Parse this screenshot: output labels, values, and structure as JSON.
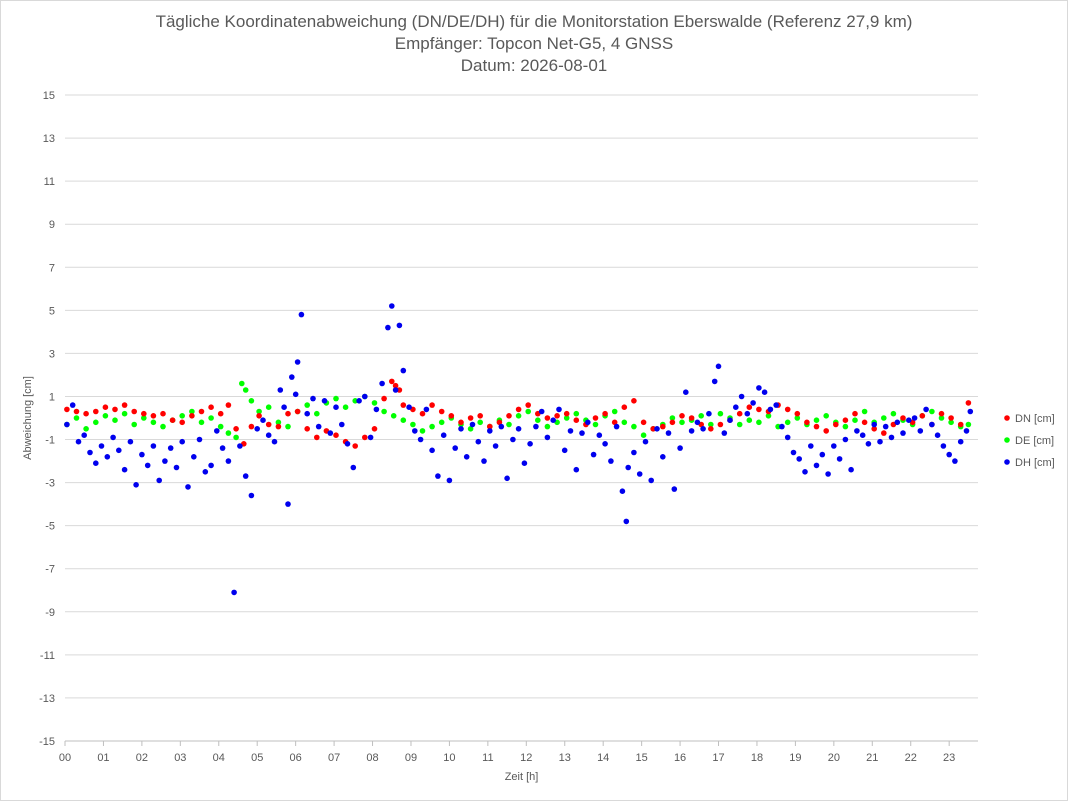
{
  "chart_data": {
    "type": "scatter",
    "title": "Tägliche Koordinatenabweichung (DN/DE/DH) für die Monitorstation Eberswalde (Referenz 27,9 km)",
    "subtitle_lines": [
      "Empfänger: Topcon Net-G5, 4 GNSS",
      "Datum: 2026-08-01"
    ],
    "xlabel": "Zeit [h]",
    "ylabel": "Abweichung [cm]",
    "xlim": [
      0,
      23.75
    ],
    "ylim": [
      -15,
      15
    ],
    "x_ticks": [
      "00",
      "01",
      "02",
      "03",
      "04",
      "05",
      "06",
      "07",
      "08",
      "09",
      "10",
      "11",
      "12",
      "13",
      "14",
      "15",
      "16",
      "17",
      "18",
      "19",
      "20",
      "21",
      "22",
      "23"
    ],
    "y_ticks": [
      15,
      13,
      11,
      9,
      7,
      5,
      3,
      1,
      -1,
      -3,
      -5,
      -7,
      -9,
      -11,
      -13,
      -15
    ],
    "grid": "horizontal",
    "legend_position": "right",
    "series": [
      {
        "name": "DN [cm]",
        "color": "#ff0000",
        "x": [
          0.05,
          0.3,
          0.55,
          0.8,
          1.05,
          1.3,
          1.55,
          1.8,
          2.05,
          2.3,
          2.55,
          2.8,
          3.05,
          3.3,
          3.55,
          3.8,
          4.05,
          4.25,
          4.45,
          4.65,
          4.85,
          5.05,
          5.3,
          5.55,
          5.8,
          6.05,
          6.3,
          6.55,
          6.8,
          7.05,
          7.3,
          7.55,
          7.8,
          8.05,
          8.3,
          8.5,
          8.6,
          8.7,
          8.8,
          9.05,
          9.3,
          9.55,
          9.8,
          10.05,
          10.3,
          10.55,
          10.8,
          11.05,
          11.3,
          11.55,
          11.8,
          12.05,
          12.3,
          12.55,
          12.8,
          13.05,
          13.3,
          13.55,
          13.8,
          14.05,
          14.3,
          14.55,
          14.8,
          15.05,
          15.3,
          15.55,
          15.8,
          16.05,
          16.3,
          16.55,
          16.8,
          17.05,
          17.3,
          17.55,
          17.8,
          18.05,
          18.3,
          18.55,
          18.8,
          19.05,
          19.3,
          19.55,
          19.8,
          20.05,
          20.3,
          20.55,
          20.8,
          21.05,
          21.3,
          21.55,
          21.8,
          22.05,
          22.3,
          22.55,
          22.8,
          23.05,
          23.3,
          23.5
        ],
        "y": [
          0.4,
          0.3,
          0.2,
          0.3,
          0.5,
          0.4,
          0.6,
          0.3,
          0.2,
          0.1,
          0.2,
          -0.1,
          -0.2,
          0.1,
          0.3,
          0.5,
          0.2,
          0.6,
          -0.5,
          -1.2,
          -0.4,
          0.1,
          -0.3,
          -0.4,
          0.2,
          0.3,
          -0.5,
          -0.9,
          -0.6,
          -0.8,
          -1.1,
          -1.3,
          -0.9,
          -0.5,
          0.9,
          1.7,
          1.5,
          1.3,
          0.6,
          0.4,
          0.2,
          0.6,
          0.3,
          0.1,
          -0.2,
          0.0,
          0.1,
          -0.4,
          -0.2,
          0.1,
          0.4,
          0.6,
          0.2,
          0.0,
          0.1,
          0.2,
          -0.1,
          -0.3,
          0.0,
          0.2,
          -0.2,
          0.5,
          0.8,
          -0.2,
          -0.5,
          -0.4,
          -0.2,
          0.1,
          0.0,
          -0.3,
          -0.5,
          -0.3,
          -0.1,
          0.2,
          0.5,
          0.4,
          0.3,
          0.6,
          0.4,
          0.2,
          -0.2,
          -0.4,
          -0.6,
          -0.3,
          -0.1,
          0.2,
          -0.2,
          -0.5,
          -0.7,
          -0.3,
          0.0,
          -0.2,
          0.1,
          -0.3,
          0.2,
          0.0,
          -0.3,
          0.7
        ]
      },
      {
        "name": "DE [cm]",
        "color": "#00ff00",
        "x": [
          0.05,
          0.3,
          0.55,
          0.8,
          1.05,
          1.3,
          1.55,
          1.8,
          2.05,
          2.3,
          2.55,
          2.8,
          3.05,
          3.3,
          3.55,
          3.8,
          4.05,
          4.25,
          4.45,
          4.6,
          4.7,
          4.85,
          5.05,
          5.3,
          5.55,
          5.8,
          6.05,
          6.3,
          6.55,
          6.8,
          7.05,
          7.3,
          7.55,
          7.8,
          8.05,
          8.3,
          8.55,
          8.8,
          9.05,
          9.3,
          9.55,
          9.8,
          10.05,
          10.3,
          10.55,
          10.8,
          11.05,
          11.3,
          11.55,
          11.8,
          12.05,
          12.3,
          12.55,
          12.8,
          13.05,
          13.3,
          13.55,
          13.8,
          14.05,
          14.3,
          14.55,
          14.8,
          15.05,
          15.3,
          15.55,
          15.8,
          16.05,
          16.3,
          16.55,
          16.8,
          17.05,
          17.3,
          17.55,
          17.8,
          18.05,
          18.3,
          18.55,
          18.8,
          19.05,
          19.3,
          19.55,
          19.8,
          20.05,
          20.3,
          20.55,
          20.8,
          21.05,
          21.3,
          21.55,
          21.8,
          22.05,
          22.3,
          22.55,
          22.8,
          23.05,
          23.3,
          23.5
        ],
        "y": [
          -0.3,
          0.0,
          -0.5,
          -0.2,
          0.1,
          -0.1,
          0.2,
          -0.3,
          0.0,
          -0.2,
          -0.4,
          -0.1,
          0.1,
          0.3,
          -0.2,
          0.0,
          -0.4,
          -0.7,
          -0.9,
          1.6,
          1.3,
          0.8,
          0.3,
          0.5,
          -0.2,
          -0.4,
          0.3,
          0.6,
          0.2,
          0.7,
          0.9,
          0.5,
          0.8,
          1.0,
          0.7,
          0.3,
          0.1,
          -0.1,
          -0.3,
          -0.6,
          -0.4,
          -0.2,
          0.0,
          -0.3,
          -0.5,
          -0.2,
          -0.4,
          -0.1,
          -0.3,
          0.1,
          0.3,
          -0.1,
          -0.4,
          -0.2,
          0.0,
          0.2,
          -0.1,
          -0.3,
          0.1,
          0.3,
          -0.2,
          -0.4,
          -0.8,
          -0.5,
          -0.3,
          0.0,
          -0.2,
          -0.1,
          0.1,
          -0.3,
          0.2,
          0.0,
          -0.3,
          -0.1,
          -0.2,
          0.1,
          -0.4,
          -0.2,
          0.0,
          -0.3,
          -0.1,
          0.1,
          -0.2,
          -0.4,
          -0.1,
          0.3,
          -0.2,
          0.0,
          0.2,
          -0.1,
          -0.3,
          0.1,
          0.3,
          0.0,
          -0.2,
          -0.4,
          -0.3
        ]
      },
      {
        "name": "DH [cm]",
        "color": "#0000ee",
        "x": [
          0.05,
          0.2,
          0.35,
          0.5,
          0.65,
          0.8,
          0.95,
          1.1,
          1.25,
          1.4,
          1.55,
          1.7,
          1.85,
          2.0,
          2.15,
          2.3,
          2.45,
          2.6,
          2.75,
          2.9,
          3.05,
          3.2,
          3.35,
          3.5,
          3.65,
          3.8,
          3.95,
          4.1,
          4.25,
          4.4,
          4.55,
          4.7,
          4.85,
          5.0,
          5.15,
          5.3,
          5.45,
          5.6,
          5.7,
          5.8,
          5.9,
          6.0,
          6.05,
          6.15,
          6.3,
          6.45,
          6.6,
          6.75,
          6.9,
          7.05,
          7.2,
          7.35,
          7.5,
          7.65,
          7.8,
          7.95,
          8.1,
          8.25,
          8.4,
          8.5,
          8.6,
          8.7,
          8.8,
          8.95,
          9.1,
          9.25,
          9.4,
          9.55,
          9.7,
          9.85,
          10.0,
          10.15,
          10.3,
          10.45,
          10.6,
          10.75,
          10.9,
          11.05,
          11.2,
          11.35,
          11.5,
          11.65,
          11.8,
          11.95,
          12.1,
          12.25,
          12.4,
          12.55,
          12.7,
          12.85,
          13.0,
          13.15,
          13.3,
          13.45,
          13.6,
          13.75,
          13.9,
          14.05,
          14.2,
          14.35,
          14.5,
          14.6,
          14.65,
          14.8,
          14.95,
          15.1,
          15.25,
          15.4,
          15.55,
          15.7,
          15.85,
          16.0,
          16.15,
          16.3,
          16.45,
          16.6,
          16.75,
          16.9,
          17.0,
          17.15,
          17.3,
          17.45,
          17.6,
          17.75,
          17.9,
          18.05,
          18.2,
          18.35,
          18.5,
          18.65,
          18.8,
          18.95,
          19.1,
          19.25,
          19.4,
          19.55,
          19.7,
          19.85,
          20.0,
          20.15,
          20.3,
          20.45,
          20.6,
          20.75,
          20.9,
          21.05,
          21.2,
          21.35,
          21.5,
          21.65,
          21.8,
          21.95,
          22.1,
          22.25,
          22.4,
          22.55,
          22.7,
          22.85,
          23.0,
          23.15,
          23.3,
          23.45,
          23.55
        ],
        "y": [
          -0.3,
          0.6,
          -1.1,
          -0.8,
          -1.6,
          -2.1,
          -1.3,
          -1.8,
          -0.9,
          -1.5,
          -2.4,
          -1.1,
          -3.1,
          -1.7,
          -2.2,
          -1.3,
          -2.9,
          -2.0,
          -1.4,
          -2.3,
          -1.1,
          -3.2,
          -1.8,
          -1.0,
          -2.5,
          -2.2,
          -0.6,
          -1.4,
          -2.0,
          -8.1,
          -1.3,
          -2.7,
          -3.6,
          -0.5,
          -0.1,
          -0.8,
          -1.1,
          1.3,
          0.5,
          -4.0,
          1.9,
          1.1,
          2.6,
          4.8,
          0.2,
          0.9,
          -0.4,
          0.8,
          -0.7,
          0.5,
          -0.3,
          -1.2,
          -2.3,
          0.8,
          1.0,
          -0.9,
          0.4,
          1.6,
          4.2,
          5.2,
          1.3,
          4.3,
          2.2,
          0.5,
          -0.6,
          -1.0,
          0.4,
          -1.5,
          -2.7,
          -0.8,
          -2.9,
          -1.4,
          -0.5,
          -1.8,
          -0.3,
          -1.1,
          -2.0,
          -0.6,
          -1.3,
          -0.4,
          -2.8,
          -1.0,
          -0.5,
          -2.1,
          -1.2,
          -0.4,
          0.3,
          -0.9,
          -0.1,
          0.4,
          -1.5,
          -0.6,
          -2.4,
          -0.7,
          -0.2,
          -1.7,
          -0.8,
          -1.2,
          -2.0,
          -0.4,
          -3.4,
          -4.8,
          -2.3,
          -1.6,
          -2.6,
          -1.1,
          -2.9,
          -0.5,
          -1.8,
          -0.7,
          -3.3,
          -1.4,
          1.2,
          -0.6,
          -0.2,
          -0.5,
          0.2,
          1.7,
          2.4,
          -0.7,
          -0.1,
          0.5,
          1.0,
          0.2,
          0.7,
          1.4,
          1.2,
          0.4,
          0.6,
          -0.4,
          -0.9,
          -1.6,
          -1.9,
          -2.5,
          -1.3,
          -2.2,
          -1.7,
          -2.6,
          -1.3,
          -1.9,
          -1.0,
          -2.4,
          -0.6,
          -0.8,
          -1.2,
          -0.3,
          -1.1,
          -0.4,
          -0.9,
          -0.2,
          -0.7,
          -0.1,
          0.0,
          -0.6,
          0.4,
          -0.3,
          -0.8,
          -1.3,
          -1.7,
          -2.0,
          -1.1,
          -0.6,
          0.3
        ]
      }
    ]
  }
}
